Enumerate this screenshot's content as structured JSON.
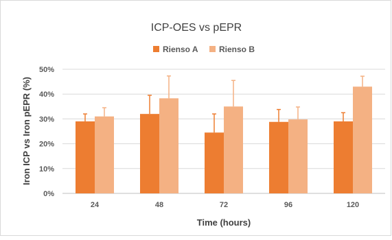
{
  "chart_data": {
    "type": "bar",
    "title": "ICP-OES vs pEPR",
    "xlabel": "Time (hours)",
    "ylabel": "Iron ICP vs Iron pEPR (%)",
    "categories": [
      "24",
      "48",
      "72",
      "96",
      "120"
    ],
    "ylim": [
      0,
      50
    ],
    "yticks": [
      0,
      10,
      20,
      30,
      40,
      50
    ],
    "ytick_labels": [
      "0%",
      "10%",
      "20%",
      "30%",
      "40%",
      "50%"
    ],
    "legend_position": "top",
    "grid": true,
    "series": [
      {
        "name": "Rienso A",
        "color": "#ED7D31",
        "values": [
          29,
          32,
          24.5,
          28.8,
          29
        ],
        "error_upper": [
          3,
          7.5,
          7.5,
          5,
          3.5
        ]
      },
      {
        "name": "Rienso B",
        "color": "#F4B183",
        "values": [
          31,
          38.3,
          35,
          29.8,
          43
        ],
        "error_upper": [
          3.5,
          9,
          10.5,
          5,
          4.2
        ]
      }
    ]
  }
}
